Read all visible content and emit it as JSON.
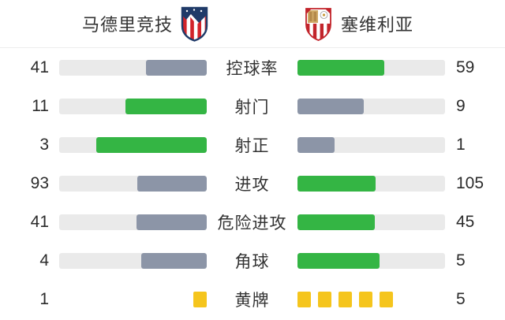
{
  "header": {
    "home_team": "马德里竞技",
    "away_team": "塞维利亚",
    "home_crest_icon": "atletico-madrid-crest",
    "away_crest_icon": "sevilla-crest"
  },
  "colors": {
    "win_green": "#34b544",
    "lose_gray": "#8c95a7",
    "bar_track": "#eaeaea",
    "yellow_card": "#f5c51d",
    "text": "#333333",
    "divider": "#ededed"
  },
  "chart_data": {
    "type": "bar",
    "title": "马德里竞技 vs 塞维利亚",
    "categories": [
      "控球率",
      "射门",
      "射正",
      "进攻",
      "危险进攻",
      "角球",
      "黄牌"
    ],
    "series": [
      {
        "name": "马德里竞技",
        "values": [
          41,
          11,
          3,
          93,
          41,
          4,
          1
        ]
      },
      {
        "name": "塞维利亚",
        "values": [
          59,
          9,
          1,
          105,
          45,
          5,
          5
        ]
      }
    ],
    "layout": "mirrored horizontal bars; each row scaled to home+away total; leading side filled green, trailing side slate gray; 黄牌 row rendered as yellow card icons",
    "grid": false,
    "legend_position": "top"
  },
  "stats": {
    "card_row_labels": [
      "黄牌"
    ]
  }
}
